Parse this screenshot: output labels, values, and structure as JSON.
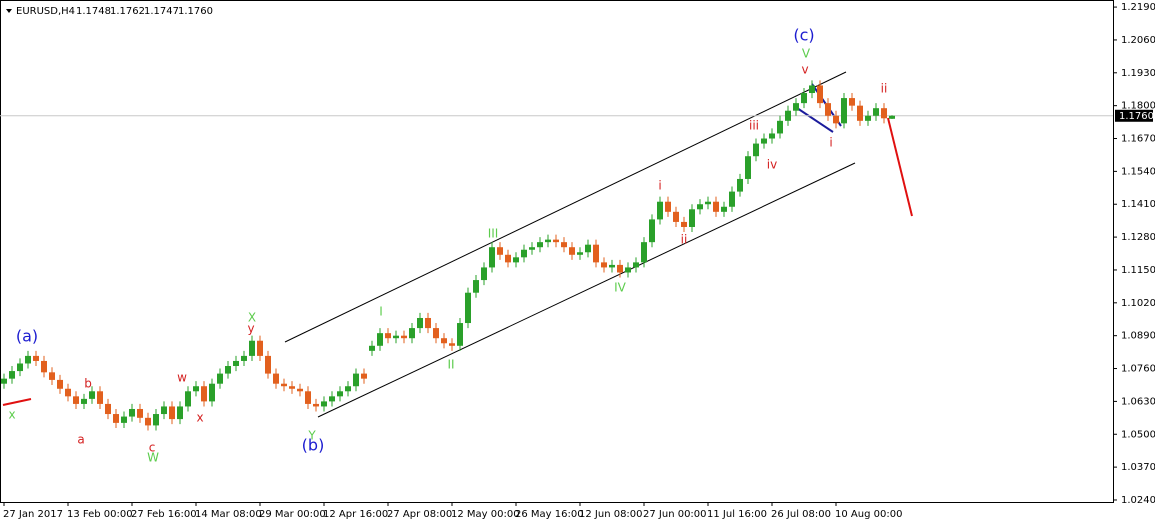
{
  "chart_data": {
    "type": "candlestick",
    "symbol": "EURUSD,H4",
    "ohlc_labels": [
      "1.1748",
      "1.1762",
      "1.1747",
      "1.1760"
    ],
    "current_price": {
      "value": 1.176,
      "label": "1.1760"
    },
    "up_color": "#2aa02a",
    "down_color": "#e2601e",
    "ylim": [
      1.0232,
      1.2218
    ],
    "yticks": [
      {
        "value": 1.219,
        "label": "1.2190"
      },
      {
        "value": 1.206,
        "label": "1.2060"
      },
      {
        "value": 1.193,
        "label": "1.1930"
      },
      {
        "value": 1.18,
        "label": "1.1800"
      },
      {
        "value": 1.167,
        "label": "1.1670"
      },
      {
        "value": 1.154,
        "label": "1.1540"
      },
      {
        "value": 1.141,
        "label": "1.1410"
      },
      {
        "value": 1.128,
        "label": "1.1280"
      },
      {
        "value": 1.115,
        "label": "1.1150"
      },
      {
        "value": 1.102,
        "label": "1.1020"
      },
      {
        "value": 1.089,
        "label": "1.0890"
      },
      {
        "value": 1.076,
        "label": "1.0760"
      },
      {
        "value": 1.063,
        "label": "1.0630"
      },
      {
        "value": 1.05,
        "label": "1.0500"
      },
      {
        "value": 1.037,
        "label": "1.0370"
      },
      {
        "value": 1.024,
        "label": "1.0240"
      }
    ],
    "categories": [
      "27 Jan 2017",
      null,
      null,
      null,
      null,
      null,
      null,
      null,
      "13 Feb 00:00",
      null,
      null,
      null,
      null,
      null,
      null,
      null,
      "27 Feb 16:00",
      null,
      null,
      null,
      null,
      null,
      null,
      null,
      "14 Mar 08:00",
      null,
      null,
      null,
      null,
      null,
      null,
      null,
      "29 Mar 00:00",
      null,
      null,
      null,
      null,
      null,
      null,
      null,
      "12 Apr 16:00",
      null,
      null,
      null,
      null,
      null,
      null,
      null,
      "27 Apr 08:00",
      null,
      null,
      null,
      null,
      null,
      null,
      null,
      "12 May 00:00",
      null,
      null,
      null,
      null,
      null,
      null,
      null,
      "26 May 16:00",
      null,
      null,
      null,
      null,
      null,
      null,
      null,
      "12 Jun 08:00",
      null,
      null,
      null,
      null,
      null,
      null,
      null,
      "27 Jun 00:00",
      null,
      null,
      null,
      null,
      null,
      null,
      null,
      "11 Jul 16:00",
      null,
      null,
      null,
      null,
      null,
      null,
      null,
      "26 Jul 08:00",
      null,
      null,
      null,
      null,
      null,
      null,
      null,
      "10 Aug 00:00",
      null,
      null,
      null,
      null,
      null,
      null,
      null
    ],
    "open": [
      1.07,
      1.072,
      1.075,
      1.078,
      1.081,
      1.079,
      1.0745,
      1.0715,
      1.068,
      1.065,
      1.062,
      1.064,
      1.067,
      1.062,
      1.058,
      1.0545,
      1.057,
      1.06,
      1.0565,
      1.0535,
      1.058,
      1.061,
      1.056,
      1.061,
      1.067,
      1.069,
      1.063,
      1.07,
      1.074,
      1.077,
      1.079,
      1.081,
      1.087,
      1.081,
      1.074,
      1.07,
      1.069,
      1.068,
      1.067,
      1.062,
      1.061,
      1.063,
      1.065,
      1.067,
      1.069,
      1.074,
      1.083,
      1.085,
      1.09,
      1.088,
      1.089,
      1.088,
      1.092,
      1.096,
      1.092,
      1.088,
      1.086,
      1.085,
      1.094,
      1.106,
      1.111,
      1.116,
      1.124,
      1.121,
      1.118,
      1.12,
      1.123,
      1.124,
      1.126,
      1.127,
      1.126,
      1.124,
      1.121,
      1.122,
      1.125,
      1.118,
      1.116,
      1.117,
      1.114,
      1.116,
      1.118,
      1.126,
      1.135,
      1.142,
      1.138,
      1.134,
      1.132,
      1.139,
      1.141,
      1.142,
      1.138,
      1.14,
      1.146,
      1.151,
      1.16,
      1.165,
      1.167,
      1.169,
      1.174,
      1.178,
      1.181,
      1.185,
      1.188,
      1.181,
      1.176,
      1.173,
      1.183,
      1.18,
      1.174,
      1.176,
      1.179,
      1.1748
    ],
    "high": [
      1.074,
      1.077,
      1.08,
      1.083,
      1.083,
      1.081,
      1.0765,
      1.0735,
      1.07,
      1.067,
      1.066,
      1.069,
      1.069,
      1.064,
      1.06,
      1.059,
      1.062,
      1.062,
      1.0585,
      1.06,
      1.063,
      1.063,
      1.063,
      1.069,
      1.071,
      1.071,
      1.072,
      1.076,
      1.079,
      1.081,
      1.083,
      1.089,
      1.089,
      1.083,
      1.076,
      1.072,
      1.071,
      1.07,
      1.069,
      1.064,
      1.065,
      1.067,
      1.069,
      1.071,
      1.076,
      1.076,
      1.087,
      1.092,
      1.092,
      1.091,
      1.091,
      1.094,
      1.098,
      1.098,
      1.094,
      1.09,
      1.088,
      1.096,
      1.108,
      1.113,
      1.118,
      1.126,
      1.126,
      1.123,
      1.122,
      1.125,
      1.126,
      1.128,
      1.129,
      1.129,
      1.128,
      1.126,
      1.124,
      1.127,
      1.127,
      1.12,
      1.119,
      1.119,
      1.118,
      1.12,
      1.128,
      1.137,
      1.144,
      1.144,
      1.14,
      1.136,
      1.141,
      1.143,
      1.144,
      1.144,
      1.142,
      1.148,
      1.153,
      1.162,
      1.167,
      1.169,
      1.171,
      1.176,
      1.18,
      1.183,
      1.187,
      1.19,
      1.19,
      1.183,
      1.178,
      1.185,
      1.185,
      1.182,
      1.178,
      1.181,
      1.181,
      1.1762
    ],
    "low": [
      1.068,
      1.07,
      1.073,
      1.076,
      1.077,
      1.0725,
      1.0695,
      1.066,
      1.063,
      1.06,
      1.06,
      1.062,
      1.06,
      1.056,
      1.0525,
      1.0525,
      1.055,
      1.0545,
      1.0515,
      1.0515,
      1.056,
      1.054,
      1.054,
      1.059,
      1.065,
      1.061,
      1.061,
      1.068,
      1.072,
      1.075,
      1.077,
      1.079,
      1.079,
      1.072,
      1.068,
      1.067,
      1.066,
      1.065,
      1.06,
      1.059,
      1.059,
      1.061,
      1.063,
      1.065,
      1.067,
      1.07,
      1.081,
      1.083,
      1.086,
      1.086,
      1.086,
      1.086,
      1.09,
      1.09,
      1.086,
      1.084,
      1.083,
      1.083,
      1.092,
      1.104,
      1.109,
      1.114,
      1.119,
      1.116,
      1.116,
      1.118,
      1.121,
      1.122,
      1.124,
      1.124,
      1.122,
      1.119,
      1.119,
      1.12,
      1.116,
      1.114,
      1.114,
      1.112,
      1.112,
      1.114,
      1.116,
      1.124,
      1.133,
      1.136,
      1.132,
      1.13,
      1.13,
      1.137,
      1.139,
      1.136,
      1.136,
      1.138,
      1.144,
      1.149,
      1.158,
      1.163,
      1.165,
      1.167,
      1.172,
      1.176,
      1.179,
      1.183,
      1.179,
      1.174,
      1.171,
      1.171,
      1.178,
      1.172,
      1.172,
      1.174,
      1.173,
      1.1747
    ],
    "close": [
      1.072,
      1.075,
      1.078,
      1.081,
      1.079,
      1.0745,
      1.0715,
      1.068,
      1.065,
      1.062,
      1.064,
      1.067,
      1.062,
      1.058,
      1.0545,
      1.057,
      1.06,
      1.0565,
      1.0535,
      1.058,
      1.061,
      1.056,
      1.061,
      1.067,
      1.069,
      1.063,
      1.07,
      1.074,
      1.077,
      1.079,
      1.081,
      1.087,
      1.081,
      1.074,
      1.07,
      1.069,
      1.068,
      1.067,
      1.062,
      1.061,
      1.063,
      1.065,
      1.067,
      1.069,
      1.074,
      1.072,
      1.085,
      1.09,
      1.088,
      1.089,
      1.088,
      1.092,
      1.096,
      1.092,
      1.088,
      1.086,
      1.085,
      1.094,
      1.106,
      1.111,
      1.116,
      1.124,
      1.121,
      1.118,
      1.12,
      1.123,
      1.124,
      1.126,
      1.127,
      1.126,
      1.124,
      1.121,
      1.122,
      1.125,
      1.118,
      1.116,
      1.117,
      1.114,
      1.116,
      1.118,
      1.126,
      1.135,
      1.142,
      1.138,
      1.134,
      1.132,
      1.139,
      1.141,
      1.142,
      1.138,
      1.14,
      1.146,
      1.151,
      1.16,
      1.165,
      1.167,
      1.169,
      1.174,
      1.178,
      1.181,
      1.185,
      1.188,
      1.181,
      1.176,
      1.173,
      1.183,
      1.18,
      1.174,
      1.176,
      1.179,
      1.175,
      1.176
    ],
    "annotations": [
      {
        "text": "(a)",
        "color": "#1c1cd0"
      },
      {
        "text": "(b)",
        "color": "#1c1cd0"
      },
      {
        "text": "(c)",
        "color": "#1c1cd0"
      },
      {
        "text": "x",
        "color": "#5ccc4c"
      },
      {
        "text": "W",
        "color": "#5ccc4c"
      },
      {
        "text": "X",
        "color": "#5ccc4c"
      },
      {
        "text": "Y",
        "color": "#5ccc4c"
      },
      {
        "text": "I",
        "color": "#5ccc4c"
      },
      {
        "text": "II",
        "color": "#5ccc4c"
      },
      {
        "text": "III",
        "color": "#5ccc4c"
      },
      {
        "text": "IV",
        "color": "#5ccc4c"
      },
      {
        "text": "V",
        "color": "#5ccc4c"
      },
      {
        "text": "a",
        "color": "#d42020"
      },
      {
        "text": "b",
        "color": "#d42020"
      },
      {
        "text": "c",
        "color": "#d42020"
      },
      {
        "text": "w",
        "color": "#d42020"
      },
      {
        "text": "x",
        "color": "#d42020"
      },
      {
        "text": "y",
        "color": "#d42020"
      },
      {
        "text": "i",
        "color": "#d42020"
      },
      {
        "text": "ii",
        "color": "#d42020"
      },
      {
        "text": "iii",
        "color": "#d42020"
      },
      {
        "text": "iv",
        "color": "#d42020"
      },
      {
        "text": "v",
        "color": "#d42020"
      },
      {
        "text": "i",
        "color": "#d42020"
      },
      {
        "text": "ii",
        "color": "#d42020"
      }
    ]
  }
}
